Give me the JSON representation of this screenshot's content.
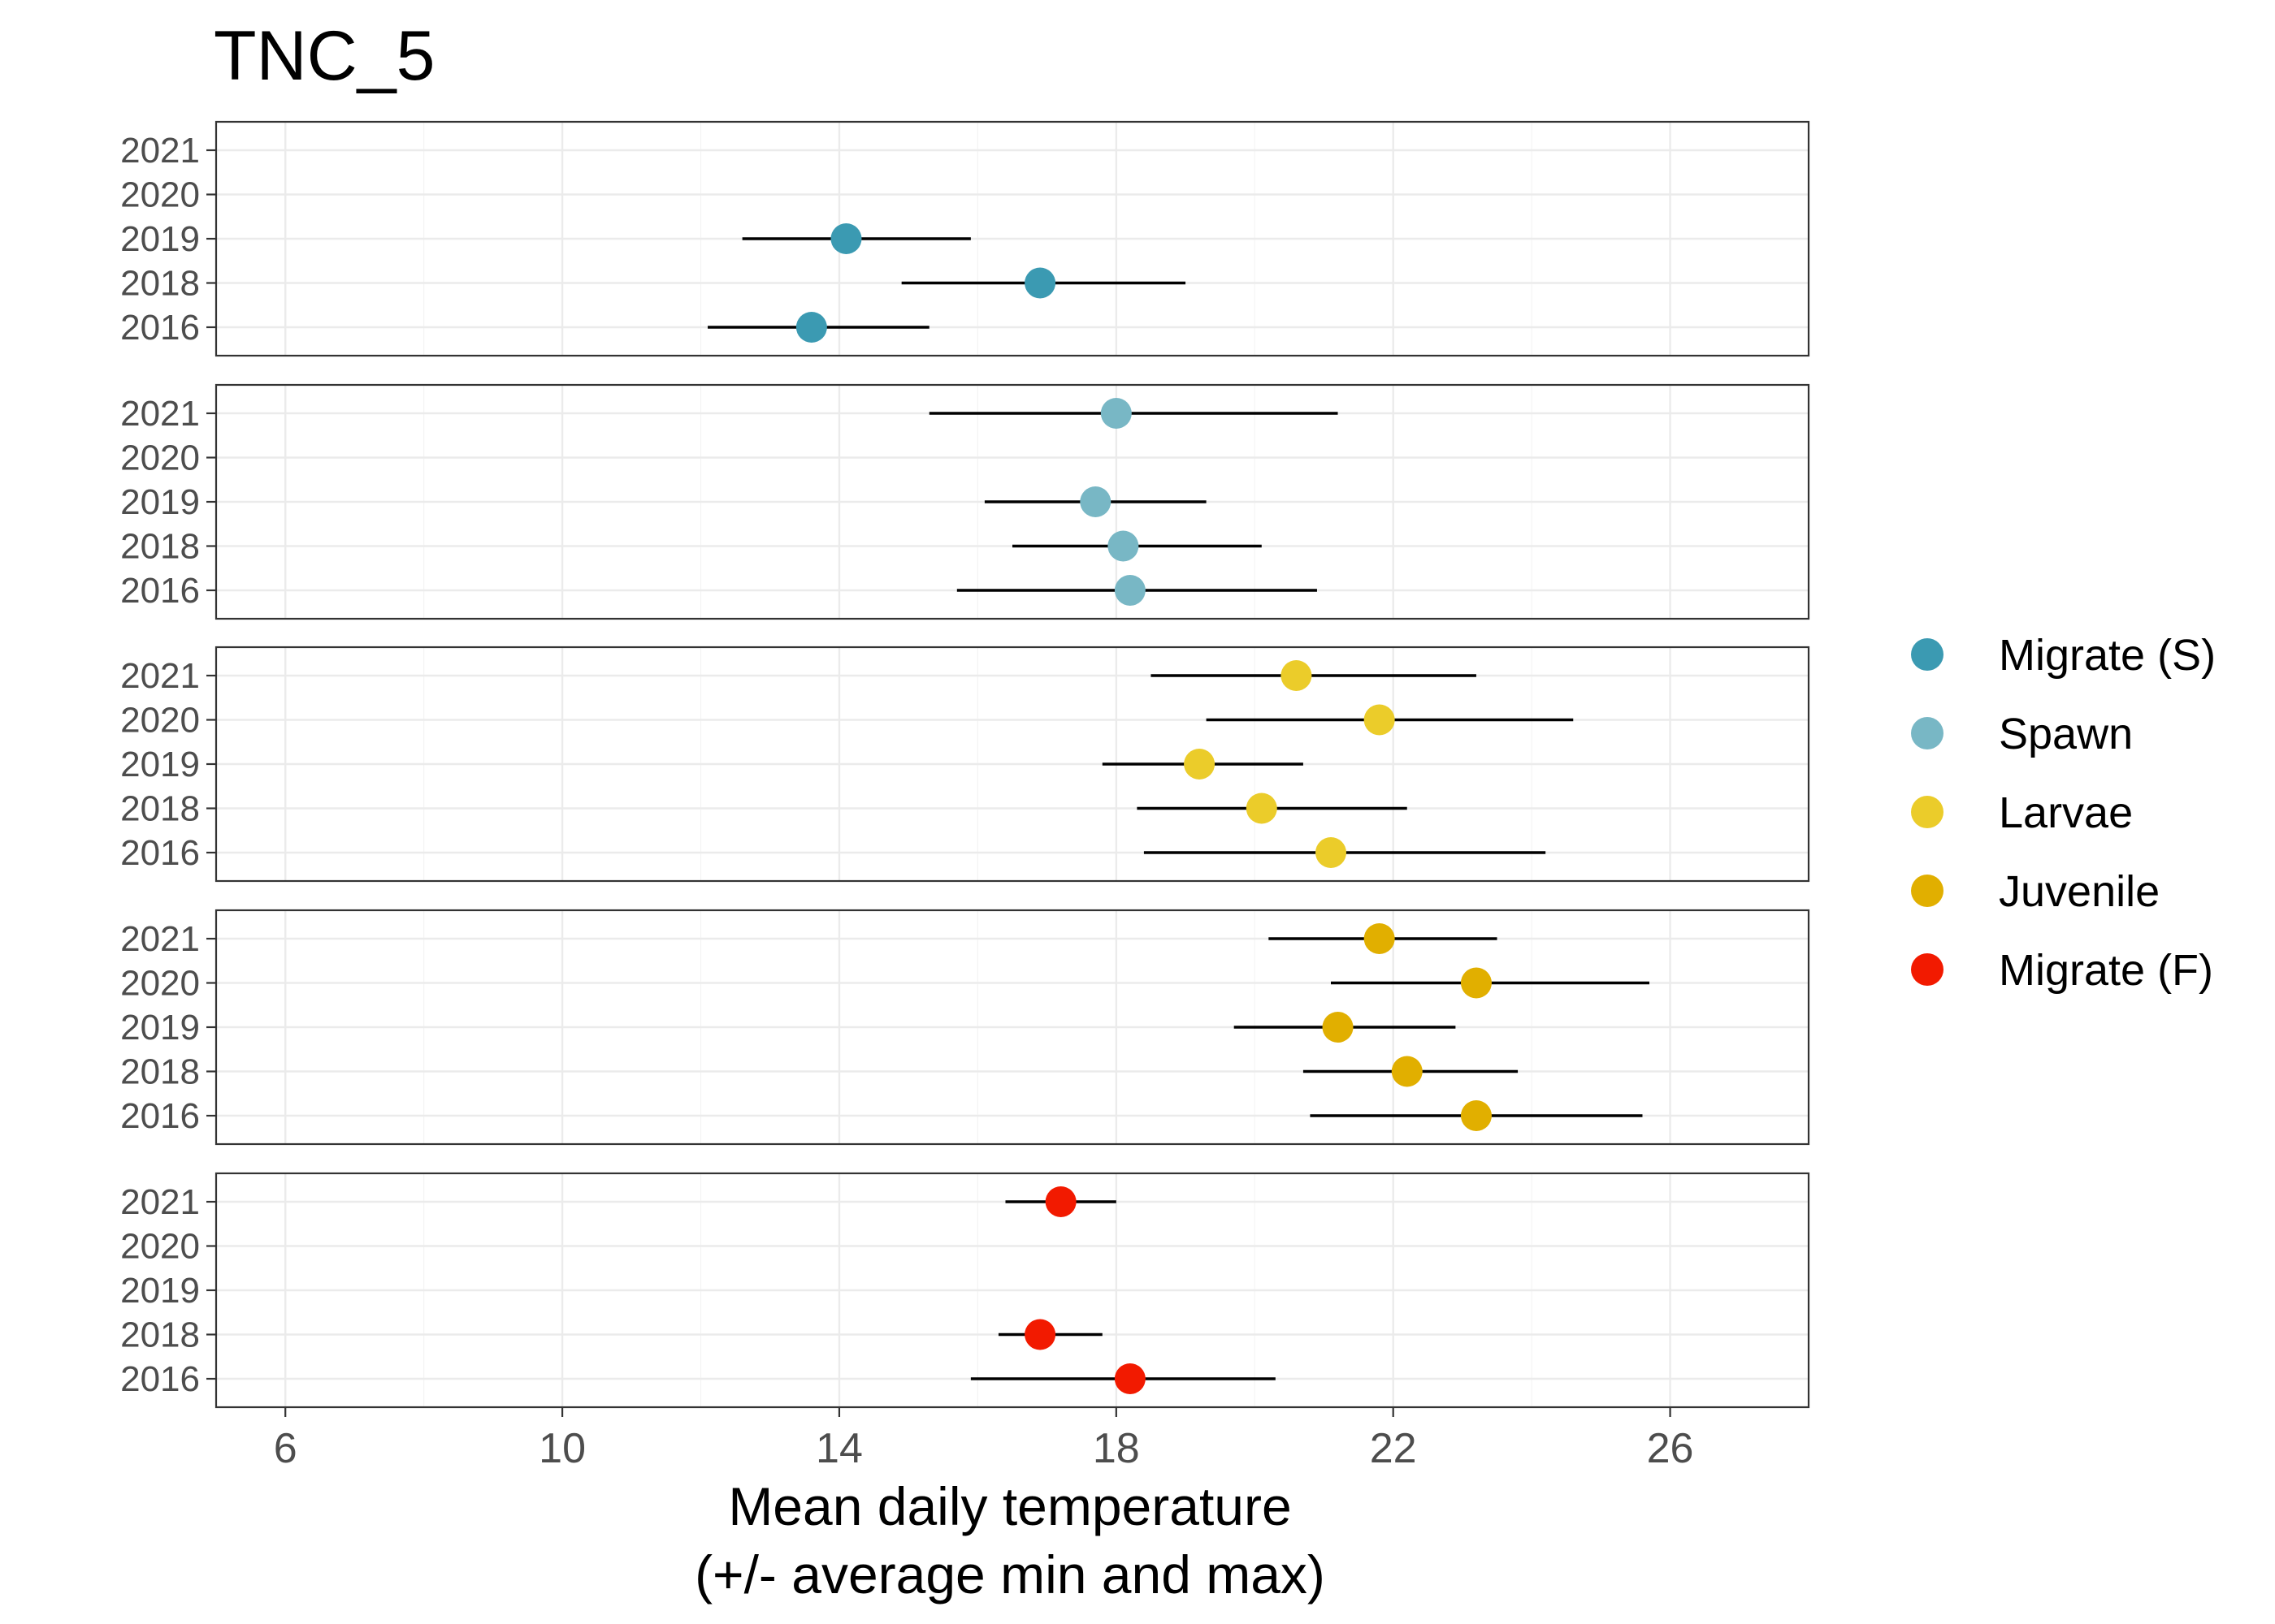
{
  "chart_data": {
    "type": "scatter",
    "title": "TNC_5",
    "xlabel_lines": [
      "Mean daily temperature",
      "(+/- average min and max)"
    ],
    "xlim": [
      5,
      28
    ],
    "xticks": [
      6,
      10,
      14,
      18,
      22,
      26
    ],
    "ycategories": [
      "2021",
      "2020",
      "2019",
      "2018",
      "2016"
    ],
    "grid": true,
    "legend_position": "right",
    "series": [
      {
        "name": "Migrate (S)",
        "color": "#3B9AB2",
        "points": [
          {
            "year": "2019",
            "mean": 14.1,
            "min": 12.6,
            "max": 15.9
          },
          {
            "year": "2018",
            "mean": 16.9,
            "min": 14.9,
            "max": 19.0
          },
          {
            "year": "2016",
            "mean": 13.6,
            "min": 12.1,
            "max": 15.3
          }
        ]
      },
      {
        "name": "Spawn",
        "color": "#78B7C5",
        "points": [
          {
            "year": "2021",
            "mean": 18.0,
            "min": 15.3,
            "max": 21.2
          },
          {
            "year": "2019",
            "mean": 17.7,
            "min": 16.1,
            "max": 19.3
          },
          {
            "year": "2018",
            "mean": 18.1,
            "min": 16.5,
            "max": 20.1
          },
          {
            "year": "2016",
            "mean": 18.2,
            "min": 15.7,
            "max": 20.9
          }
        ]
      },
      {
        "name": "Larvae",
        "color": "#EBCC2A",
        "points": [
          {
            "year": "2021",
            "mean": 20.6,
            "min": 18.5,
            "max": 23.2
          },
          {
            "year": "2020",
            "mean": 21.8,
            "min": 19.3,
            "max": 24.6
          },
          {
            "year": "2019",
            "mean": 19.2,
            "min": 17.8,
            "max": 20.7
          },
          {
            "year": "2018",
            "mean": 20.1,
            "min": 18.3,
            "max": 22.2
          },
          {
            "year": "2016",
            "mean": 21.1,
            "min": 18.4,
            "max": 24.2
          }
        ]
      },
      {
        "name": "Juvenile",
        "color": "#E1AF00",
        "points": [
          {
            "year": "2021",
            "mean": 21.8,
            "min": 20.2,
            "max": 23.5
          },
          {
            "year": "2020",
            "mean": 23.2,
            "min": 21.1,
            "max": 25.7
          },
          {
            "year": "2019",
            "mean": 21.2,
            "min": 19.7,
            "max": 22.9
          },
          {
            "year": "2018",
            "mean": 22.2,
            "min": 20.7,
            "max": 23.8
          },
          {
            "year": "2016",
            "mean": 23.2,
            "min": 20.8,
            "max": 25.6
          }
        ]
      },
      {
        "name": "Migrate (F)",
        "color": "#F21A00",
        "points": [
          {
            "year": "2021",
            "mean": 17.2,
            "min": 16.4,
            "max": 18.0
          },
          {
            "year": "2018",
            "mean": 16.9,
            "min": 16.3,
            "max": 17.8
          },
          {
            "year": "2016",
            "mean": 18.2,
            "min": 15.9,
            "max": 20.3
          }
        ]
      }
    ]
  }
}
